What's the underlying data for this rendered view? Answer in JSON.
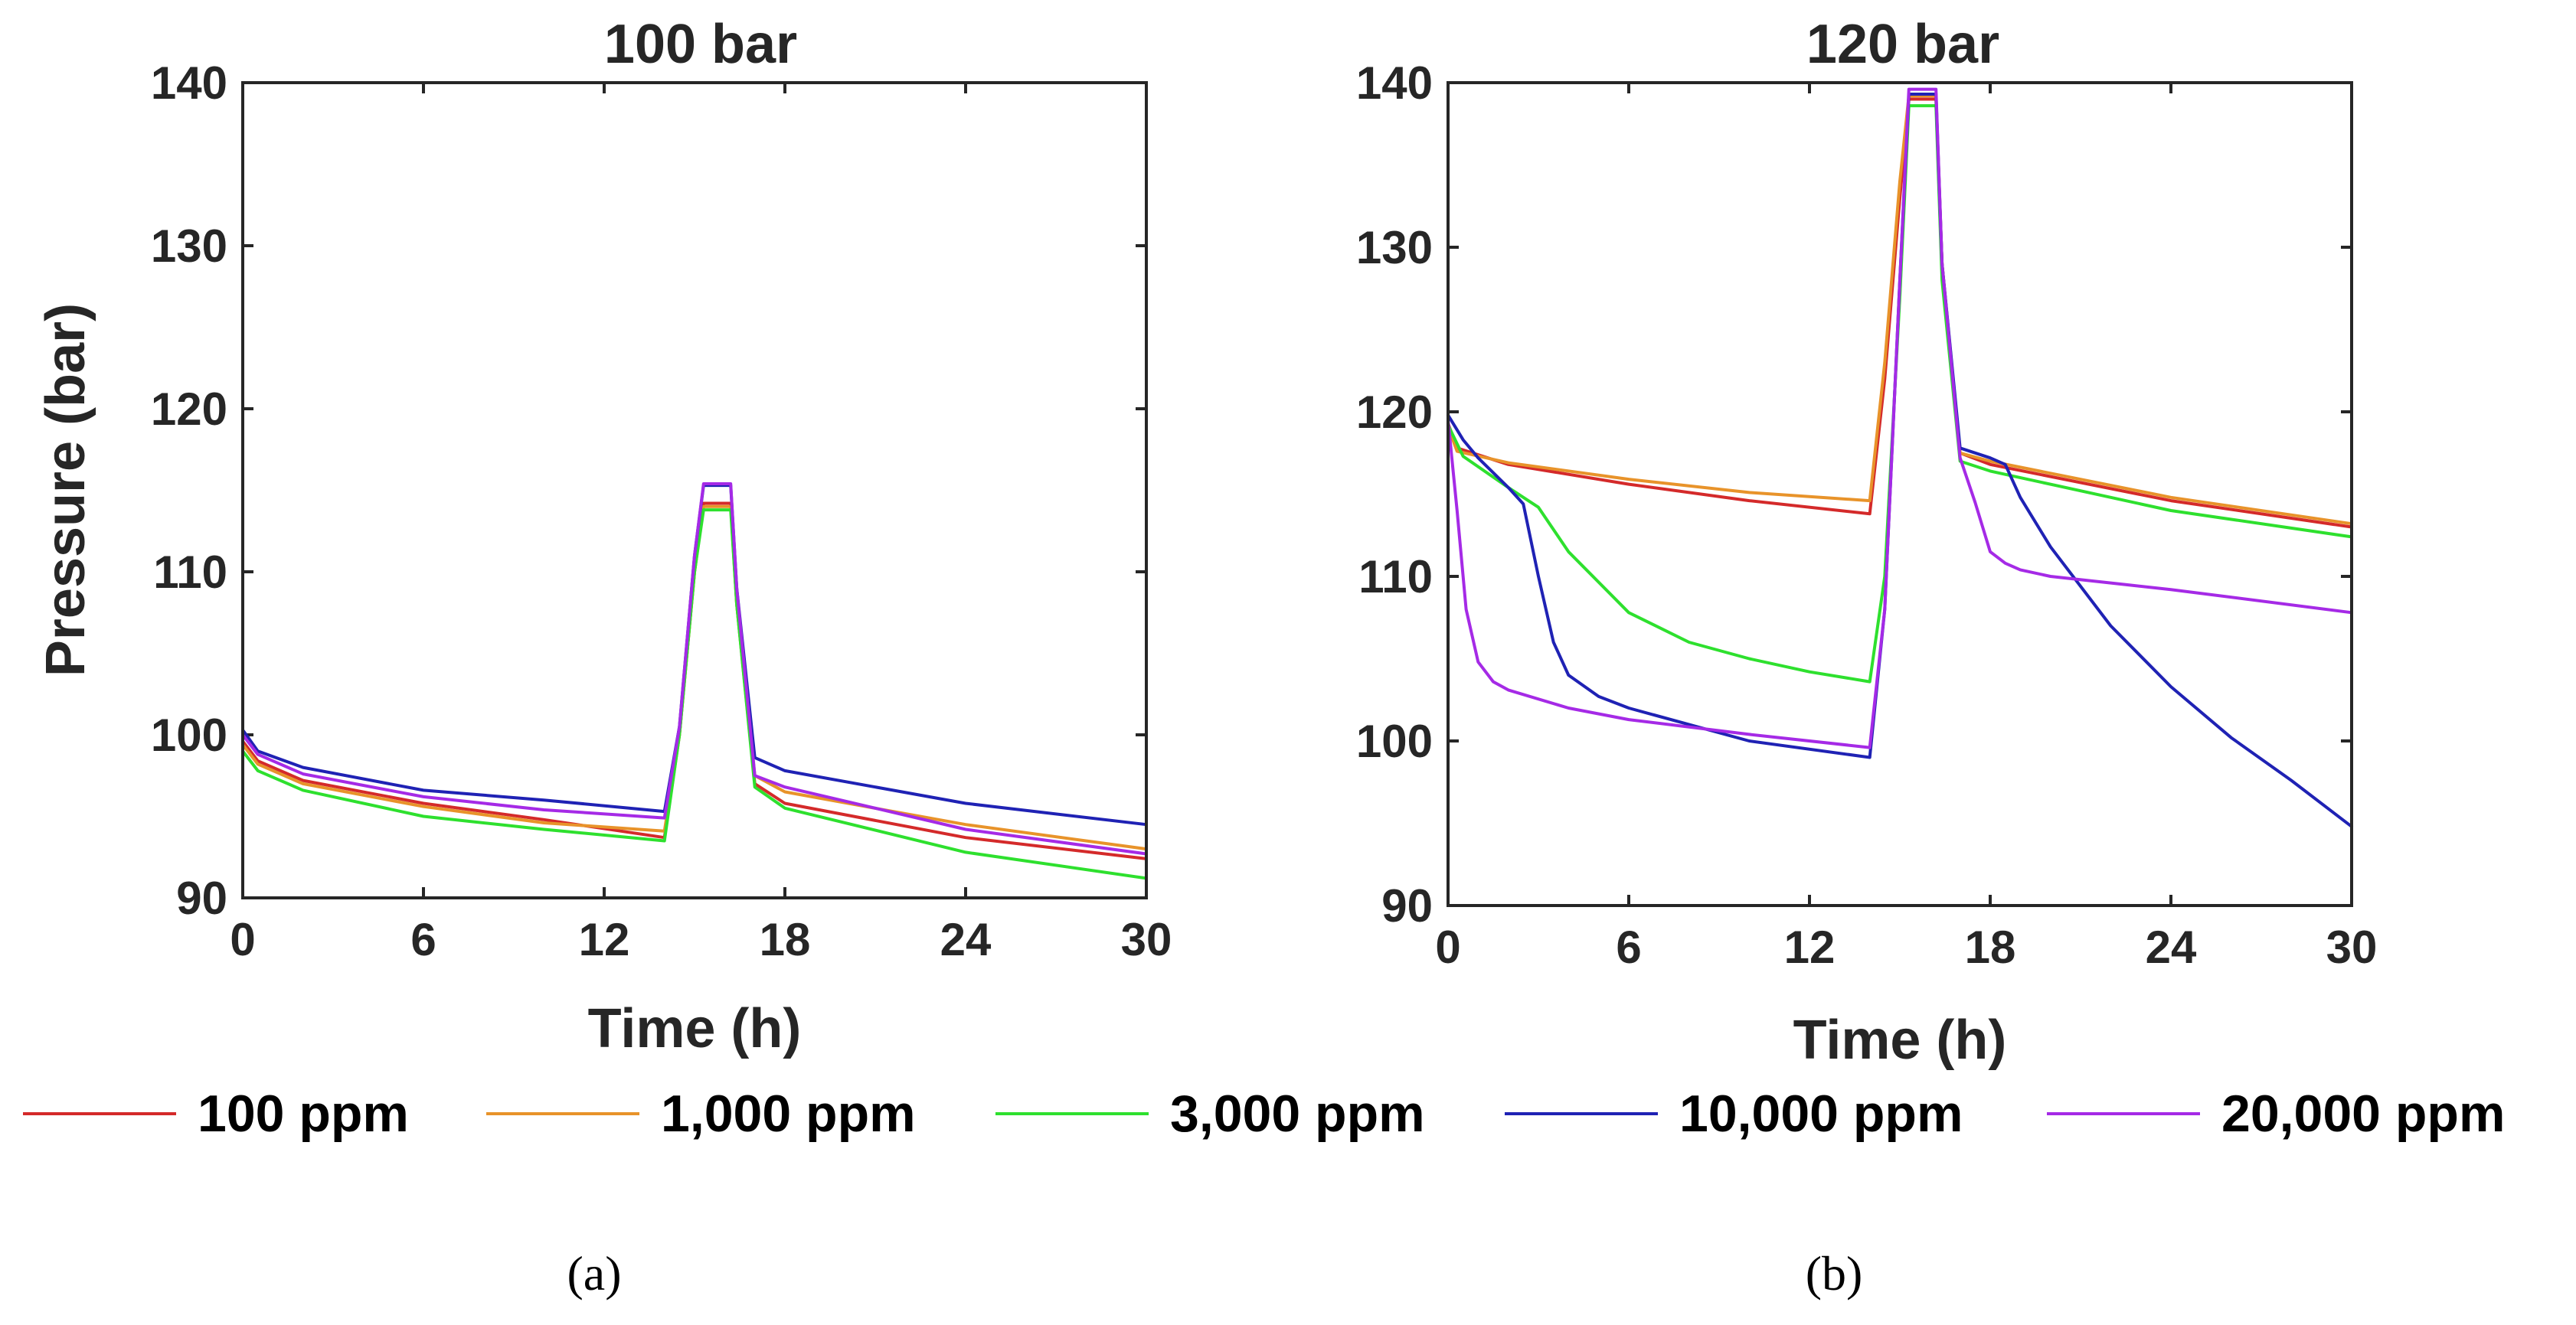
{
  "colors": {
    "100 ppm": "#d42a2a",
    "1,000 ppm": "#e8932a",
    "3,000 ppm": "#2ee02e",
    "10,000 ppm": "#1f22b4",
    "20,000 ppm": "#a52ae6"
  },
  "legend": [
    "100 ppm",
    "1,000 ppm",
    "3,000 ppm",
    "10,000 ppm",
    "20,000 ppm"
  ],
  "captions": [
    "(a)",
    "(b)"
  ],
  "chart_data": [
    {
      "type": "line",
      "title": "100 bar",
      "xlabel": "Time (h)",
      "ylabel": "Pressure (bar)",
      "xlim": [
        0,
        30
      ],
      "ylim": [
        90,
        140
      ],
      "xticks": [
        0,
        6,
        12,
        18,
        24,
        30
      ],
      "yticks": [
        90,
        100,
        110,
        120,
        130,
        140
      ],
      "series": [
        {
          "name": "100 ppm",
          "x": [
            0,
            0.5,
            2,
            6,
            10,
            14,
            14.5,
            15,
            15.3,
            16.2,
            16.4,
            17,
            18,
            24,
            30
          ],
          "y": [
            99.6,
            98.4,
            97.2,
            95.8,
            94.8,
            93.7,
            100,
            110,
            114.2,
            114.2,
            108,
            97,
            95.8,
            93.7,
            92.4
          ]
        },
        {
          "name": "1,000 ppm",
          "x": [
            0,
            0.5,
            2,
            6,
            10,
            14,
            14.5,
            15,
            15.3,
            16.2,
            16.4,
            17,
            18,
            24,
            30
          ],
          "y": [
            99.4,
            98.2,
            97.0,
            95.6,
            94.6,
            94.1,
            100,
            110,
            114.0,
            114.0,
            108,
            97.5,
            96.5,
            94.5,
            93.0
          ]
        },
        {
          "name": "3,000 ppm",
          "x": [
            0,
            0.5,
            2,
            6,
            10,
            14,
            14.5,
            15,
            15.3,
            16.2,
            16.4,
            17,
            18,
            24,
            30
          ],
          "y": [
            99.0,
            97.8,
            96.6,
            95.0,
            94.2,
            93.5,
            100,
            110,
            113.8,
            113.8,
            108,
            96.8,
            95.5,
            92.8,
            91.2
          ]
        },
        {
          "name": "10,000 ppm",
          "x": [
            0,
            0.5,
            2,
            6,
            10,
            14,
            14.5,
            15,
            15.3,
            16.2,
            16.4,
            17,
            18,
            24,
            30
          ],
          "y": [
            100.3,
            99.0,
            98.0,
            96.6,
            96.0,
            95.3,
            100.5,
            111,
            115.3,
            115.3,
            109,
            98.6,
            97.8,
            95.8,
            94.5
          ]
        },
        {
          "name": "20,000 ppm",
          "x": [
            0,
            0.5,
            2,
            6,
            10,
            14,
            14.5,
            15,
            15.3,
            16.2,
            16.4,
            17,
            18,
            24,
            30
          ],
          "y": [
            100.0,
            98.8,
            97.6,
            96.2,
            95.4,
            94.9,
            100.5,
            111,
            115.4,
            115.4,
            109,
            97.5,
            96.8,
            94.2,
            92.7
          ]
        }
      ]
    },
    {
      "type": "line",
      "title": "120 bar",
      "xlabel": "Time (h)",
      "ylabel": "",
      "xlim": [
        0,
        30
      ],
      "ylim": [
        90,
        140
      ],
      "xticks": [
        0,
        6,
        12,
        18,
        24,
        30
      ],
      "yticks": [
        90,
        100,
        110,
        120,
        130,
        140
      ],
      "series": [
        {
          "name": "100 ppm",
          "x": [
            0,
            0.3,
            2,
            6,
            10,
            14,
            14.5,
            15,
            15.3,
            16.2,
            16.4,
            17,
            18,
            24,
            30
          ],
          "y": [
            119.3,
            117.8,
            116.8,
            115.6,
            114.6,
            113.8,
            122,
            133,
            139.0,
            139.0,
            129,
            117.5,
            116.8,
            114.6,
            113.0
          ]
        },
        {
          "name": "1,000 ppm",
          "x": [
            0,
            0.3,
            2,
            6,
            10,
            14,
            14.5,
            15,
            15.3,
            16.2,
            16.4,
            17,
            18,
            24,
            30
          ],
          "y": [
            119.1,
            117.6,
            116.9,
            115.9,
            115.1,
            114.6,
            123,
            134,
            139.2,
            139.2,
            129,
            117.5,
            117.0,
            114.8,
            113.2
          ]
        },
        {
          "name": "3,000 ppm",
          "x": [
            0,
            0.5,
            2,
            3,
            4,
            6,
            8,
            10,
            12,
            14,
            14.5,
            15,
            15.3,
            16.2,
            16.4,
            17,
            18,
            24,
            30
          ],
          "y": [
            119.2,
            117.3,
            115.4,
            114.2,
            111.5,
            107.8,
            106.0,
            105.0,
            104.2,
            103.6,
            110,
            127,
            138.6,
            138.6,
            128,
            117.0,
            116.4,
            114.0,
            112.4
          ]
        },
        {
          "name": "10,000 ppm",
          "x": [
            0,
            0.5,
            1,
            2,
            2.5,
            3,
            3.5,
            4,
            5,
            6,
            10,
            14,
            14.5,
            15,
            15.3,
            16.2,
            16.4,
            17,
            18,
            18.5,
            19,
            20,
            22,
            24,
            26,
            28,
            30
          ],
          "y": [
            119.8,
            118.3,
            117.2,
            115.4,
            114.4,
            110,
            106,
            104.0,
            102.7,
            102.0,
            100.0,
            99.0,
            108,
            128,
            139.3,
            139.3,
            129,
            117.8,
            117.2,
            116.8,
            114.8,
            111.8,
            107.0,
            103.3,
            100.2,
            97.6,
            94.8
          ]
        },
        {
          "name": "20,000 ppm",
          "x": [
            0,
            0.3,
            0.6,
            1,
            1.5,
            2,
            4,
            6,
            10,
            14,
            14.5,
            15,
            15.3,
            16.2,
            16.4,
            17,
            17.5,
            18,
            18.5,
            19,
            20,
            24,
            30
          ],
          "y": [
            119.5,
            114,
            108,
            104.8,
            103.6,
            103.1,
            102.0,
            101.3,
            100.4,
            99.6,
            108,
            128,
            139.6,
            139.6,
            129,
            117.2,
            114.5,
            111.5,
            110.8,
            110.4,
            110.0,
            109.2,
            107.8
          ]
        }
      ]
    }
  ]
}
